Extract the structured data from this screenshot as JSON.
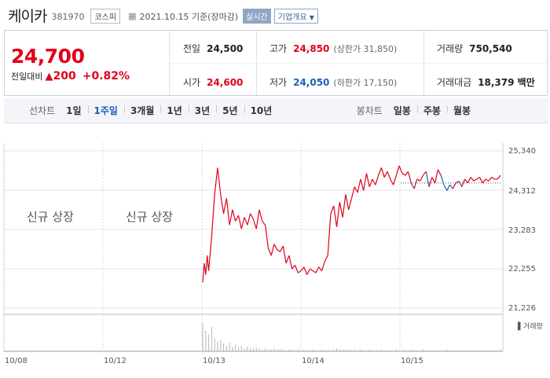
{
  "header": {
    "name": "케이카",
    "code": "381970",
    "market": "코스피",
    "date": "2021.10.15 기준(장마감)",
    "realtime": "실시간",
    "company_info": "기업개요"
  },
  "price": {
    "current": "24,700",
    "change_label": "전일대비",
    "change": "200",
    "change_pct": "+0.82%"
  },
  "stats": {
    "prev_close_label": "전일",
    "prev_close": "24,500",
    "open_label": "시가",
    "open": "24,600",
    "high_label": "고가",
    "high": "24,850",
    "upper_limit": "(상한가 31,850)",
    "low_label": "저가",
    "low": "24,050",
    "lower_limit": "(하한가 17,150)",
    "volume_label": "거래량",
    "volume": "750,540",
    "amount_label": "거래대금",
    "amount": "18,379 백만"
  },
  "periods": {
    "line_label": "선차트",
    "line_tabs": [
      "1일",
      "1주일",
      "3개월",
      "1년",
      "3년",
      "5년",
      "10년"
    ],
    "active": "1주일",
    "candle_label": "봉차트",
    "candle_tabs": [
      "일봉",
      "주봉",
      "월봉"
    ]
  },
  "chart": {
    "new_listing_text": "신규 상장",
    "volume_legend": "거래량",
    "colors": {
      "up": "#e0001b",
      "down": "#1e5fb4",
      "grid": "#e5e5e5",
      "volume": "#b5b5b5"
    }
  },
  "chart_data": {
    "type": "line",
    "title": "",
    "ylim": [
      21226,
      25340
    ],
    "yticks": [
      "25,340",
      "24,312",
      "23,283",
      "22,255",
      "21,226"
    ],
    "xticks": [
      "10/08",
      "10/12",
      "10/13",
      "10/14",
      "10/15"
    ],
    "prev_close": 24500,
    "series": [
      {
        "x": [
          0,
          0.5,
          1,
          1.5,
          2,
          3,
          4,
          5,
          6,
          7,
          8,
          9,
          10,
          11,
          12,
          13,
          14,
          15,
          16,
          17,
          18,
          19,
          20,
          21,
          22,
          23,
          24,
          25,
          26,
          27,
          28,
          29,
          30,
          31,
          32,
          33,
          34,
          35,
          36,
          37,
          38,
          39,
          40,
          41,
          42,
          43,
          44,
          45,
          46,
          47,
          48,
          49,
          50,
          51,
          52,
          53,
          54,
          55,
          56,
          57,
          58,
          59,
          60,
          61,
          62,
          63,
          64,
          65,
          66,
          67,
          68,
          69,
          70,
          71,
          72,
          73,
          74,
          75,
          76,
          77,
          78,
          79,
          80,
          81,
          82,
          83,
          84,
          85,
          86,
          87,
          88,
          89,
          90,
          91,
          92,
          93,
          94,
          95,
          96,
          97,
          98,
          99,
          100
        ],
        "values": [
          21900,
          22400,
          22100,
          22600,
          22200,
          23100,
          24200,
          24900,
          24200,
          23700,
          24100,
          23400,
          23800,
          23500,
          23650,
          23300,
          23600,
          23400,
          23700,
          23550,
          23300,
          23800,
          23500,
          23400,
          22800,
          22600,
          22900,
          22750,
          22700,
          22850,
          22400,
          22600,
          22250,
          22350,
          22150,
          22200,
          22300,
          22100,
          22250,
          22200,
          22150,
          22300,
          22200,
          22450,
          22600,
          23700,
          23900,
          23350,
          24000,
          23600,
          24200,
          23800,
          24100,
          24400,
          24250,
          24600,
          24300,
          24750,
          24400,
          24600,
          24450,
          24700,
          24900,
          24650,
          24800,
          24600,
          24450,
          24700,
          24950,
          24750,
          24700,
          24800,
          24500,
          24350,
          24600,
          24550,
          24700,
          24800,
          24400,
          24650,
          24500,
          24850,
          24700,
          24450,
          24300,
          24450,
          24350,
          24500,
          24550,
          24400,
          24600,
          24500,
          24650,
          24550,
          24600,
          24650,
          24500,
          24600,
          24550,
          24650,
          24600,
          24600,
          24700
        ]
      }
    ]
  }
}
